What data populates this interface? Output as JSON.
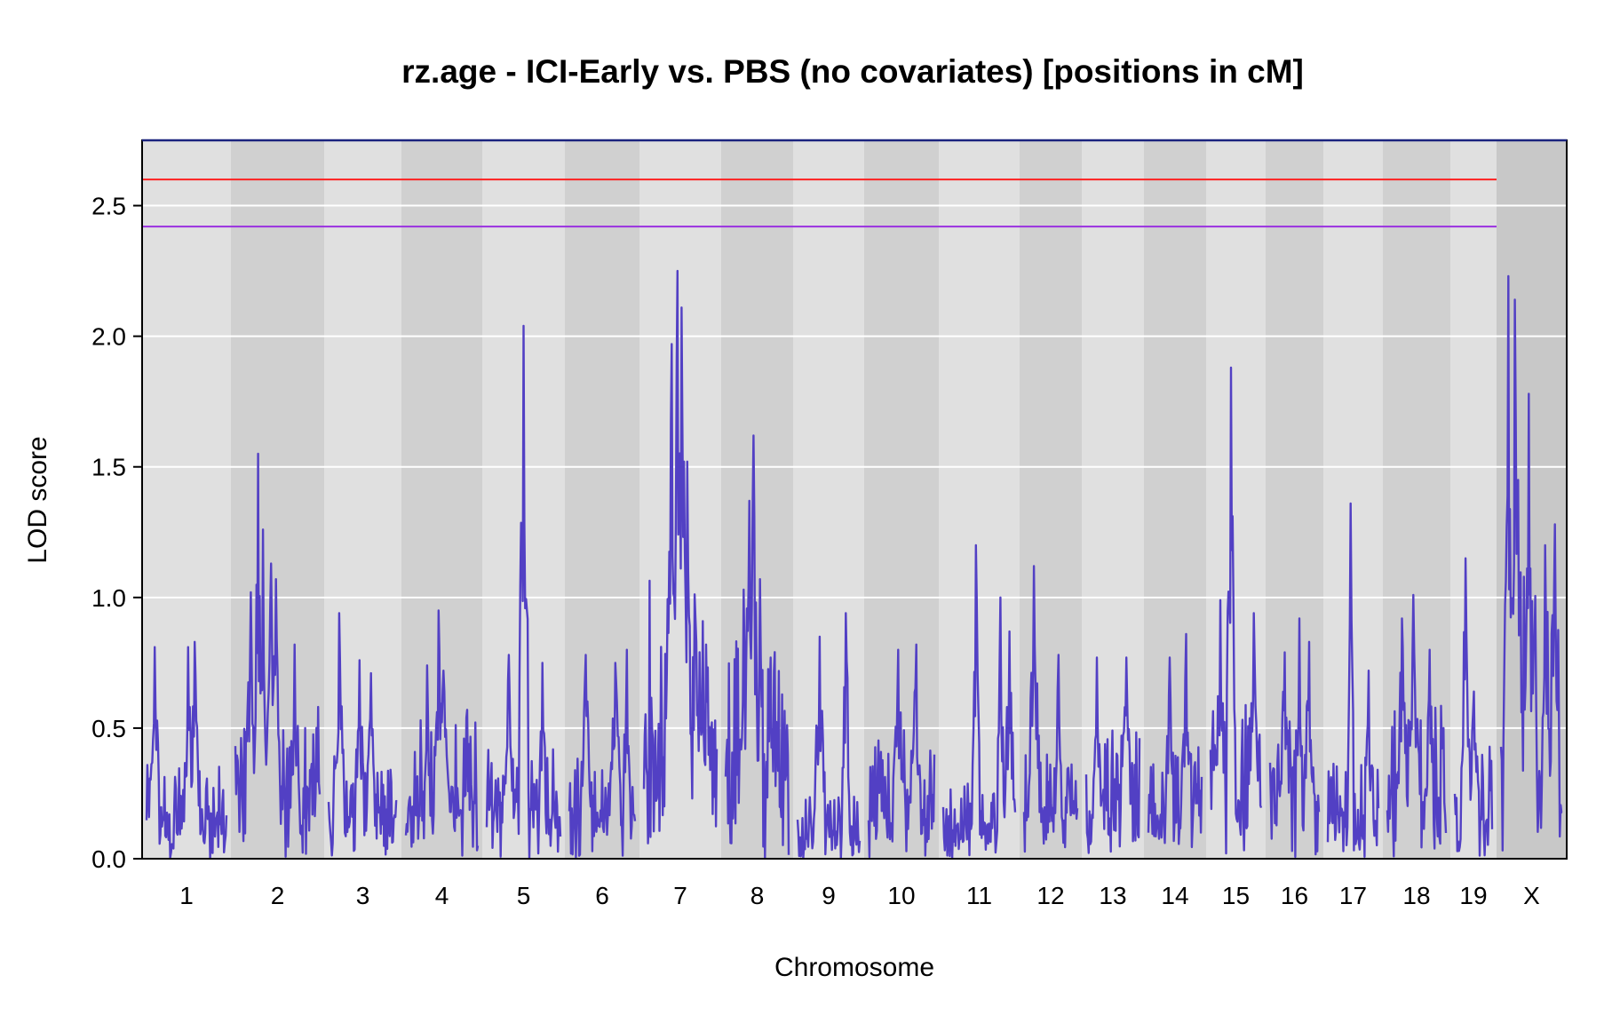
{
  "chart_data": {
    "type": "line",
    "title": "rz.age - ICI-Early vs. PBS (no covariates) [positions in cM]",
    "xlabel": "Chromosome",
    "ylabel": "LOD score",
    "ylim": [
      0.0,
      2.75
    ],
    "yticks": [
      "0.0",
      "0.5",
      "1.0",
      "1.5",
      "2.0",
      "2.5"
    ],
    "grid": true,
    "thresholds": [
      {
        "value": 2.6,
        "color": "#ff2020"
      },
      {
        "value": 2.42,
        "color": "#9a30e0"
      }
    ],
    "colors": {
      "line": "#5240c4",
      "band_light": "#e0e0e0",
      "band_dark": "#d0d0d0",
      "band_x": "#c8c8c8",
      "grid": "#ffffff"
    },
    "chromosomes": [
      {
        "label": "1",
        "baseline": 0.18,
        "max_lod": 0.83,
        "peaks": [
          [
            0.1,
            0.81
          ],
          [
            0.52,
            0.81
          ],
          [
            0.6,
            0.83
          ]
        ]
      },
      {
        "label": "2",
        "baseline": 0.3,
        "max_lod": 1.55,
        "peaks": [
          [
            0.18,
            1.02
          ],
          [
            0.27,
            1.55
          ],
          [
            0.33,
            1.26
          ],
          [
            0.42,
            1.13
          ],
          [
            0.48,
            1.07
          ],
          [
            0.7,
            0.82
          ]
        ]
      },
      {
        "label": "3",
        "baseline": 0.18,
        "max_lod": 0.94,
        "peaks": [
          [
            0.16,
            0.94
          ],
          [
            0.45,
            0.76
          ],
          [
            0.62,
            0.71
          ]
        ]
      },
      {
        "label": "4",
        "baseline": 0.28,
        "max_lod": 0.95,
        "peaks": [
          [
            0.3,
            0.74
          ],
          [
            0.45,
            0.95
          ],
          [
            0.52,
            0.72
          ],
          [
            0.85,
            0.57
          ]
        ]
      },
      {
        "label": "5",
        "baseline": 0.22,
        "max_lod": 2.04,
        "peaks": [
          [
            0.5,
            2.04
          ],
          [
            0.3,
            0.78
          ],
          [
            0.75,
            0.75
          ]
        ]
      },
      {
        "label": "6",
        "baseline": 0.2,
        "max_lod": 0.8,
        "peaks": [
          [
            0.25,
            0.78
          ],
          [
            0.7,
            0.75
          ],
          [
            0.88,
            0.8
          ]
        ]
      },
      {
        "label": "7",
        "baseline": 0.55,
        "max_lod": 2.25,
        "peaks": [
          [
            0.38,
            1.97
          ],
          [
            0.46,
            2.25
          ],
          [
            0.52,
            2.11
          ],
          [
            0.55,
            1.52
          ],
          [
            0.6,
            1.52
          ],
          [
            0.85,
            0.82
          ]
        ]
      },
      {
        "label": "8",
        "baseline": 0.42,
        "max_lod": 1.62,
        "peaks": [
          [
            0.28,
            1.03
          ],
          [
            0.38,
            1.37
          ],
          [
            0.44,
            1.62
          ],
          [
            0.55,
            1.07
          ],
          [
            0.72,
            0.77
          ]
        ]
      },
      {
        "label": "9",
        "baseline": 0.12,
        "max_lod": 0.94,
        "peaks": [
          [
            0.35,
            0.85
          ],
          [
            0.78,
            0.94
          ]
        ]
      },
      {
        "label": "10",
        "baseline": 0.25,
        "max_lod": 0.82,
        "peaks": [
          [
            0.45,
            0.8
          ],
          [
            0.72,
            0.82
          ]
        ]
      },
      {
        "label": "11",
        "baseline": 0.15,
        "max_lod": 1.2,
        "peaks": [
          [
            0.45,
            1.2
          ],
          [
            0.8,
            1.0
          ],
          [
            0.92,
            0.87
          ]
        ]
      },
      {
        "label": "12",
        "baseline": 0.2,
        "max_lod": 1.12,
        "peaks": [
          [
            0.18,
            1.12
          ],
          [
            0.65,
            0.78
          ]
        ]
      },
      {
        "label": "13",
        "baseline": 0.25,
        "max_lod": 0.77,
        "peaks": [
          [
            0.2,
            0.77
          ],
          [
            0.75,
            0.77
          ]
        ]
      },
      {
        "label": "14",
        "baseline": 0.22,
        "max_lod": 0.86,
        "peaks": [
          [
            0.4,
            0.77
          ],
          [
            0.7,
            0.86
          ]
        ]
      },
      {
        "label": "15",
        "baseline": 0.3,
        "max_lod": 1.88,
        "peaks": [
          [
            0.4,
            1.88
          ],
          [
            0.2,
            0.99
          ],
          [
            0.85,
            0.94
          ]
        ]
      },
      {
        "label": "16",
        "baseline": 0.28,
        "max_lod": 0.92,
        "peaks": [
          [
            0.6,
            0.92
          ],
          [
            0.3,
            0.79
          ],
          [
            0.8,
            0.83
          ]
        ]
      },
      {
        "label": "17",
        "baseline": 0.2,
        "max_lod": 1.36,
        "peaks": [
          [
            0.45,
            1.36
          ],
          [
            0.8,
            0.72
          ]
        ]
      },
      {
        "label": "18",
        "baseline": 0.3,
        "max_lod": 1.01,
        "peaks": [
          [
            0.45,
            1.01
          ],
          [
            0.25,
            0.92
          ],
          [
            0.72,
            0.8
          ]
        ]
      },
      {
        "label": "19",
        "baseline": 0.22,
        "max_lod": 1.15,
        "peaks": [
          [
            0.28,
            1.15
          ],
          [
            0.5,
            0.64
          ]
        ]
      },
      {
        "label": "X",
        "baseline": 0.55,
        "max_lod": 2.23,
        "peaks": [
          [
            0.12,
            2.23
          ],
          [
            0.22,
            2.14
          ],
          [
            0.45,
            1.78
          ],
          [
            0.1,
            1.39
          ],
          [
            0.28,
            1.45
          ],
          [
            0.72,
            1.2
          ],
          [
            0.88,
            1.28
          ]
        ]
      }
    ]
  }
}
